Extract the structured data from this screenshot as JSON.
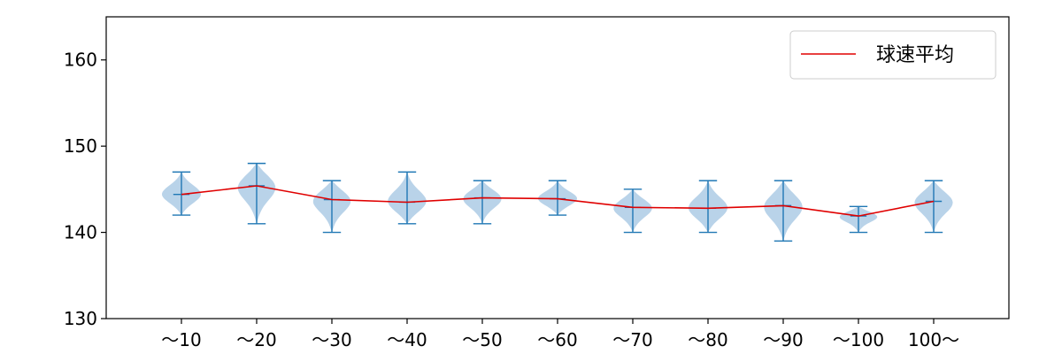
{
  "chart_data": {
    "type": "violin",
    "title": "",
    "xlabel": "",
    "ylabel": "",
    "categories": [
      "〜10",
      "〜20",
      "〜30",
      "〜40",
      "〜50",
      "〜60",
      "〜70",
      "〜80",
      "〜90",
      "〜100",
      "100〜"
    ],
    "ylim": [
      130,
      165
    ],
    "yticks": [
      130,
      140,
      150,
      160
    ],
    "grid": false,
    "legend": {
      "placement": "top-right",
      "entries": [
        "球速平均"
      ]
    },
    "violins": [
      {
        "min": 142,
        "max": 147,
        "mean": 144.4
      },
      {
        "min": 141,
        "max": 148,
        "mean": 145.4
      },
      {
        "min": 140,
        "max": 146,
        "mean": 143.8
      },
      {
        "min": 141,
        "max": 147,
        "mean": 143.5
      },
      {
        "min": 141,
        "max": 146,
        "mean": 144.0
      },
      {
        "min": 142,
        "max": 146,
        "mean": 143.9
      },
      {
        "min": 140,
        "max": 145,
        "mean": 142.9
      },
      {
        "min": 140,
        "max": 146,
        "mean": 142.8
      },
      {
        "min": 139,
        "max": 146,
        "mean": 143.1
      },
      {
        "min": 140,
        "max": 143,
        "mean": 141.9
      },
      {
        "min": 140,
        "max": 146,
        "mean": 143.6
      }
    ],
    "series": [
      {
        "name": "球速平均",
        "values": [
          144.4,
          145.4,
          143.8,
          143.5,
          144.0,
          143.9,
          142.9,
          142.8,
          143.1,
          141.9,
          143.6
        ]
      }
    ],
    "colors": {
      "line": "#e00000",
      "violin_fill": "#a8c8e4",
      "violin_edge": "#1f77b4"
    }
  }
}
